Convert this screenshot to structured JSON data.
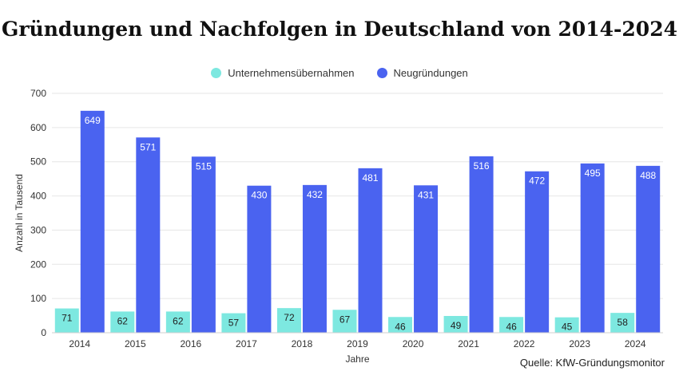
{
  "colors": {
    "series1": "#7de8e0",
    "series2": "#4a63f0",
    "grid": "#e6e6e6"
  },
  "chart_data": {
    "type": "bar",
    "title": "Gründungen und Nachfolgen in Deutschland von 2014-2024",
    "xlabel": "Jahre",
    "ylabel": "Anzahl in Tausend",
    "ylim": [
      0,
      700
    ],
    "yticks": [
      0,
      100,
      200,
      300,
      400,
      500,
      600,
      700
    ],
    "categories": [
      "2014",
      "2015",
      "2016",
      "2017",
      "2018",
      "2019",
      "2020",
      "2021",
      "2022",
      "2023",
      "2024"
    ],
    "series": [
      {
        "name": "Unternehmensübernahmen",
        "values": [
          71,
          62,
          62,
          57,
          72,
          67,
          46,
          49,
          46,
          45,
          58
        ]
      },
      {
        "name": "Neugründungen",
        "values": [
          649,
          571,
          515,
          430,
          432,
          481,
          431,
          516,
          472,
          495,
          488
        ]
      }
    ],
    "legend_position": "top-center",
    "source": "Quelle: KfW-Gründungsmonitor"
  }
}
